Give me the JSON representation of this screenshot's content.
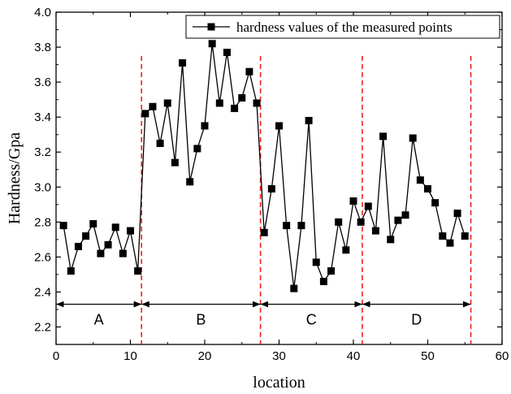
{
  "chart_data": {
    "type": "scatter",
    "xlabel": "location",
    "ylabel": "Hardness/Gpa",
    "xlim": [
      0,
      60
    ],
    "ylim": [
      2.1,
      4.0
    ],
    "x_ticks": [
      "0",
      "10",
      "20",
      "30",
      "40",
      "50",
      "60"
    ],
    "y_ticks": [
      "2.2",
      "2.4",
      "2.6",
      "2.8",
      "3.0",
      "3.2",
      "3.4",
      "3.6",
      "3.8",
      "4.0"
    ],
    "legend_position": "top-right",
    "series": [
      {
        "name": "hardness values of the measured points",
        "color": "#000000",
        "marker": "square",
        "x": [
          1,
          2,
          3,
          4,
          5,
          6,
          7,
          8,
          9,
          10,
          11,
          12,
          13,
          14,
          15,
          16,
          17,
          18,
          19,
          20,
          21,
          22,
          23,
          24,
          25,
          26,
          27,
          28,
          29,
          30,
          31,
          32,
          33,
          34,
          35,
          36,
          37,
          38,
          39,
          40,
          41,
          42,
          43,
          44,
          45,
          46,
          47,
          48,
          49,
          50,
          51,
          52,
          53,
          54,
          55
        ],
        "y": [
          2.78,
          2.52,
          2.66,
          2.72,
          2.79,
          2.62,
          2.67,
          2.77,
          2.62,
          2.75,
          2.52,
          3.42,
          3.46,
          3.25,
          3.48,
          3.14,
          3.71,
          3.03,
          3.22,
          3.35,
          3.82,
          3.48,
          3.77,
          3.45,
          3.51,
          3.66,
          3.48,
          2.74,
          2.99,
          3.35,
          2.78,
          2.42,
          2.78,
          3.38,
          2.57,
          2.46,
          2.52,
          2.8,
          2.64,
          2.92,
          2.8,
          2.89,
          2.75,
          3.29,
          2.7,
          2.81,
          2.84,
          3.28,
          3.04,
          2.99,
          2.91,
          2.72,
          2.68,
          2.85,
          2.72
        ]
      }
    ],
    "boundaries": {
      "x": [
        11.5,
        27.5,
        41.2,
        55.8
      ],
      "color": "#e8211d",
      "style": "dashed"
    },
    "regions": {
      "y": 2.33,
      "start_x": 0,
      "items": [
        {
          "label": "A",
          "from": 0,
          "to": 11.5
        },
        {
          "label": "B",
          "from": 11.5,
          "to": 27.5
        },
        {
          "label": "C",
          "from": 27.5,
          "to": 41.2
        },
        {
          "label": "D",
          "from": 41.2,
          "to": 55.8
        }
      ]
    },
    "grid": false
  }
}
